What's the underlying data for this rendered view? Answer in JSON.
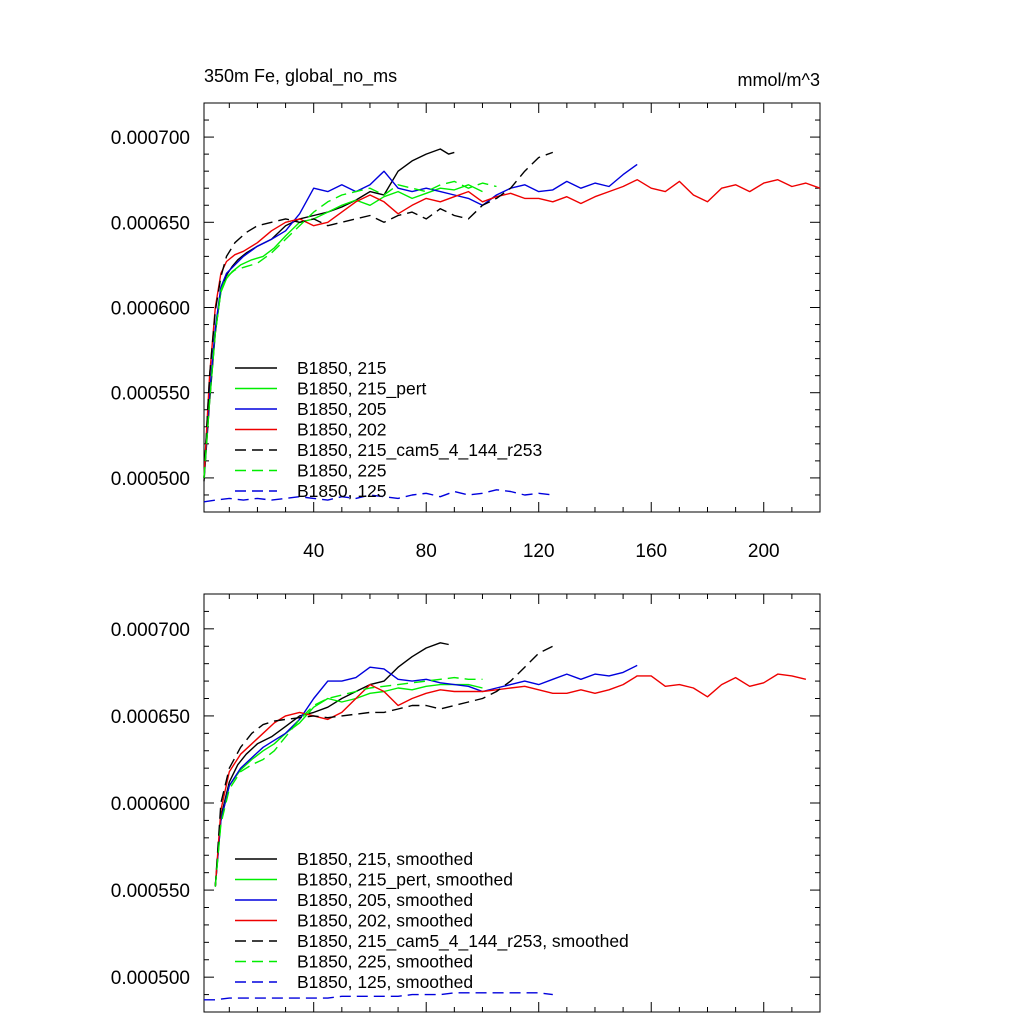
{
  "chart_data": [
    {
      "type": "line",
      "title": "350m Fe, global_no_ms",
      "units": "mmol/m^3",
      "xlim": [
        1,
        220
      ],
      "ylim": [
        0.00048,
        0.00072
      ],
      "xticks": [
        40,
        80,
        120,
        160,
        200
      ],
      "xtick_labels": [
        "40",
        "80",
        "120",
        "160",
        "200"
      ],
      "yticks": [
        0.0005,
        0.00055,
        0.0006,
        0.00065,
        0.0007
      ],
      "ytick_labels": [
        "0.000500",
        "0.000550",
        "0.000600",
        "0.000650",
        "0.000700"
      ],
      "legend_position": "lower-left",
      "series": [
        {
          "name": "B1850, 215",
          "color": "#000000",
          "dash": "solid",
          "x": [
            1,
            3,
            5,
            7,
            9,
            11,
            13,
            16,
            20,
            25,
            30,
            35,
            40,
            45,
            50,
            55,
            60,
            65,
            70,
            75,
            80,
            85,
            88,
            90
          ],
          "y": [
            0.000498,
            0.000545,
            0.000585,
            0.00061,
            0.000619,
            0.000624,
            0.000628,
            0.000632,
            0.000636,
            0.00064,
            0.000648,
            0.000652,
            0.000654,
            0.000656,
            0.000659,
            0.000663,
            0.000668,
            0.000666,
            0.00068,
            0.000686,
            0.00069,
            0.000693,
            0.00069,
            0.000691
          ]
        },
        {
          "name": "B1850, 215_pert",
          "color": "#00ee00",
          "dash": "solid",
          "x": [
            1,
            3,
            5,
            7,
            9,
            11,
            14,
            18,
            22,
            26,
            30,
            35,
            40,
            45,
            50,
            55,
            60,
            65,
            70,
            75,
            80,
            85,
            90,
            95,
            100
          ],
          "y": [
            0.0005,
            0.000548,
            0.000586,
            0.000609,
            0.000617,
            0.000621,
            0.000625,
            0.000628,
            0.00063,
            0.000635,
            0.000642,
            0.00065,
            0.000652,
            0.000656,
            0.00066,
            0.000663,
            0.00066,
            0.000665,
            0.000668,
            0.000664,
            0.000667,
            0.00067,
            0.000669,
            0.000672,
            0.000668
          ]
        },
        {
          "name": "B1850, 205",
          "color": "#0000dd",
          "dash": "solid",
          "x": [
            1,
            3,
            5,
            7,
            9,
            12,
            15,
            20,
            25,
            30,
            35,
            40,
            45,
            50,
            55,
            60,
            65,
            70,
            75,
            80,
            85,
            90,
            95,
            100,
            105,
            110,
            115,
            120,
            125,
            130,
            135,
            140,
            145,
            150,
            155
          ],
          "y": [
            0.0005,
            0.00055,
            0.000588,
            0.000612,
            0.00062,
            0.000625,
            0.00063,
            0.000636,
            0.00064,
            0.000645,
            0.000655,
            0.00067,
            0.000668,
            0.000672,
            0.000668,
            0.000672,
            0.00068,
            0.00067,
            0.000668,
            0.00067,
            0.000668,
            0.000666,
            0.000664,
            0.00066,
            0.000666,
            0.00067,
            0.000672,
            0.000668,
            0.000669,
            0.000674,
            0.00067,
            0.000673,
            0.000671,
            0.000678,
            0.000684
          ]
        },
        {
          "name": "B1850, 202",
          "color": "#ee0000",
          "dash": "solid",
          "x": [
            1,
            3,
            5,
            7,
            9,
            12,
            15,
            20,
            25,
            30,
            35,
            40,
            45,
            50,
            55,
            60,
            65,
            70,
            75,
            80,
            85,
            90,
            95,
            100,
            105,
            110,
            115,
            120,
            125,
            130,
            135,
            140,
            145,
            150,
            155,
            160,
            165,
            170,
            175,
            180,
            185,
            190,
            195,
            200,
            205,
            210,
            215,
            220
          ],
          "y": [
            0.0005,
            0.00056,
            0.0006,
            0.00062,
            0.000627,
            0.000631,
            0.000633,
            0.000638,
            0.000645,
            0.00065,
            0.000652,
            0.000648,
            0.00065,
            0.000656,
            0.000662,
            0.000666,
            0.000662,
            0.000655,
            0.00066,
            0.000664,
            0.000662,
            0.000665,
            0.000668,
            0.000662,
            0.000665,
            0.000667,
            0.000664,
            0.000664,
            0.000662,
            0.000665,
            0.000661,
            0.000665,
            0.000668,
            0.000671,
            0.000675,
            0.00067,
            0.000668,
            0.000674,
            0.000666,
            0.000662,
            0.00067,
            0.000672,
            0.000668,
            0.000673,
            0.000675,
            0.000671,
            0.000673,
            0.00067
          ]
        },
        {
          "name": "B1850, 215_cam5_4_144_r253",
          "color": "#000000",
          "dash": "dashed",
          "x": [
            1,
            3,
            5,
            7,
            9,
            12,
            16,
            20,
            25,
            30,
            35,
            40,
            45,
            50,
            55,
            60,
            65,
            70,
            75,
            80,
            85,
            90,
            95,
            100,
            105,
            110,
            115,
            120,
            125
          ],
          "y": [
            0.0005,
            0.00056,
            0.000598,
            0.000618,
            0.00063,
            0.000638,
            0.000644,
            0.000648,
            0.00065,
            0.000652,
            0.00065,
            0.000652,
            0.000648,
            0.00065,
            0.000652,
            0.000654,
            0.00065,
            0.000654,
            0.000656,
            0.000652,
            0.000658,
            0.000654,
            0.000652,
            0.00066,
            0.000664,
            0.00067,
            0.00068,
            0.000688,
            0.000691
          ]
        },
        {
          "name": "B1850, 225",
          "color": "#00ee00",
          "dash": "dashed",
          "x": [
            1,
            3,
            5,
            7,
            9,
            12,
            16,
            20,
            25,
            30,
            35,
            40,
            45,
            50,
            55,
            60,
            65,
            70,
            75,
            80,
            85,
            90,
            95,
            100,
            105
          ],
          "y": [
            0.0005,
            0.000545,
            0.000585,
            0.00061,
            0.000618,
            0.000622,
            0.000624,
            0.000626,
            0.000632,
            0.00064,
            0.000648,
            0.000656,
            0.000662,
            0.000666,
            0.000668,
            0.00067,
            0.000666,
            0.000672,
            0.00067,
            0.000668,
            0.000672,
            0.000674,
            0.00067,
            0.000673,
            0.000671
          ]
        },
        {
          "name": "B1850, 125",
          "color": "#0000dd",
          "dash": "dashed",
          "x": [
            1,
            5,
            10,
            15,
            20,
            25,
            30,
            35,
            40,
            45,
            50,
            55,
            60,
            65,
            70,
            75,
            80,
            85,
            90,
            95,
            100,
            105,
            110,
            115,
            120,
            125
          ],
          "y": [
            0.000486,
            0.000487,
            0.000488,
            0.000487,
            0.000488,
            0.000487,
            0.000488,
            0.000489,
            0.000488,
            0.000487,
            0.000489,
            0.000488,
            0.00049,
            0.000489,
            0.000488,
            0.00049,
            0.000491,
            0.000489,
            0.000492,
            0.00049,
            0.000491,
            0.000493,
            0.000492,
            0.00049,
            0.000491,
            0.00049
          ]
        }
      ]
    },
    {
      "type": "line",
      "xlim": [
        1,
        220
      ],
      "ylim": [
        0.00048,
        0.00072
      ],
      "xticks": [
        40,
        80,
        120,
        160,
        200
      ],
      "yticks": [
        0.0005,
        0.00055,
        0.0006,
        0.00065,
        0.0007
      ],
      "ytick_labels": [
        "0.000500",
        "0.000550",
        "0.000600",
        "0.000650",
        "0.000700"
      ],
      "legend_position": "lower-left",
      "series": [
        {
          "name": "B1850, 215, smoothed",
          "color": "#000000",
          "dash": "solid",
          "x": [
            5,
            7,
            10,
            13,
            16,
            20,
            25,
            30,
            35,
            40,
            45,
            50,
            55,
            60,
            65,
            70,
            75,
            80,
            85,
            88
          ],
          "y": [
            0.000552,
            0.000592,
            0.000612,
            0.000622,
            0.000628,
            0.000634,
            0.000638,
            0.000644,
            0.00065,
            0.000652,
            0.000655,
            0.00066,
            0.000664,
            0.000668,
            0.00067,
            0.000678,
            0.000684,
            0.000689,
            0.000692,
            0.000691
          ]
        },
        {
          "name": "B1850, 215_pert, smoothed",
          "color": "#00ee00",
          "dash": "solid",
          "x": [
            5,
            7,
            10,
            14,
            18,
            22,
            26,
            30,
            35,
            40,
            45,
            50,
            55,
            60,
            65,
            70,
            75,
            80,
            85,
            90,
            95,
            100
          ],
          "y": [
            0.000552,
            0.00059,
            0.00061,
            0.000619,
            0.000625,
            0.00063,
            0.000634,
            0.00064,
            0.000646,
            0.000655,
            0.00066,
            0.000658,
            0.00066,
            0.000663,
            0.000664,
            0.000666,
            0.000665,
            0.000667,
            0.000668,
            0.000668,
            0.000668,
            0.000666
          ]
        },
        {
          "name": "B1850, 205, smoothed",
          "color": "#0000dd",
          "dash": "solid",
          "x": [
            5,
            7,
            10,
            14,
            18,
            22,
            26,
            30,
            35,
            40,
            45,
            50,
            55,
            60,
            65,
            70,
            75,
            80,
            85,
            90,
            95,
            100,
            105,
            110,
            115,
            120,
            125,
            130,
            135,
            140,
            145,
            150,
            155
          ],
          "y": [
            0.000552,
            0.00059,
            0.00061,
            0.00062,
            0.000626,
            0.000632,
            0.000636,
            0.00064,
            0.000648,
            0.00066,
            0.00067,
            0.00067,
            0.000672,
            0.000678,
            0.000677,
            0.000671,
            0.00067,
            0.000671,
            0.000669,
            0.000668,
            0.000667,
            0.000664,
            0.000666,
            0.000668,
            0.00067,
            0.000668,
            0.000671,
            0.000674,
            0.000671,
            0.000674,
            0.000673,
            0.000675,
            0.000679
          ]
        },
        {
          "name": "B1850, 202, smoothed",
          "color": "#ee0000",
          "dash": "solid",
          "x": [
            5,
            7,
            10,
            14,
            18,
            22,
            26,
            30,
            35,
            40,
            45,
            50,
            55,
            60,
            65,
            70,
            75,
            80,
            85,
            90,
            95,
            100,
            105,
            110,
            115,
            120,
            125,
            130,
            135,
            140,
            145,
            150,
            155,
            160,
            165,
            170,
            175,
            180,
            185,
            190,
            195,
            200,
            205,
            210,
            215
          ],
          "y": [
            0.000552,
            0.000596,
            0.000618,
            0.000628,
            0.000634,
            0.00064,
            0.000646,
            0.00065,
            0.000652,
            0.00065,
            0.000648,
            0.000652,
            0.00066,
            0.000668,
            0.000664,
            0.000656,
            0.00066,
            0.000663,
            0.000665,
            0.000664,
            0.000664,
            0.000664,
            0.000665,
            0.000666,
            0.000667,
            0.000665,
            0.000663,
            0.000663,
            0.000665,
            0.000663,
            0.000665,
            0.000668,
            0.000673,
            0.000673,
            0.000667,
            0.000668,
            0.000666,
            0.000661,
            0.000668,
            0.000672,
            0.000667,
            0.000669,
            0.000674,
            0.000673,
            0.000671
          ]
        },
        {
          "name": "B1850, 215_cam5_4_144_r253, smoothed",
          "color": "#000000",
          "dash": "dashed",
          "x": [
            5,
            7,
            10,
            14,
            18,
            22,
            26,
            30,
            35,
            40,
            45,
            50,
            55,
            60,
            65,
            70,
            75,
            80,
            85,
            90,
            95,
            100,
            105,
            110,
            115,
            120,
            125
          ],
          "y": [
            0.000552,
            0.0006,
            0.00062,
            0.000632,
            0.00064,
            0.000645,
            0.000647,
            0.000648,
            0.000649,
            0.00065,
            0.000649,
            0.00065,
            0.000651,
            0.000652,
            0.000652,
            0.000654,
            0.000656,
            0.000656,
            0.000654,
            0.000656,
            0.000658,
            0.00066,
            0.000664,
            0.00067,
            0.000678,
            0.000686,
            0.00069
          ]
        },
        {
          "name": "B1850, 225, smoothed",
          "color": "#00ee00",
          "dash": "dashed",
          "x": [
            5,
            7,
            10,
            14,
            18,
            22,
            26,
            30,
            35,
            40,
            45,
            50,
            55,
            60,
            65,
            70,
            75,
            80,
            85,
            90,
            95,
            100
          ],
          "y": [
            0.000552,
            0.000588,
            0.000608,
            0.000618,
            0.000622,
            0.000625,
            0.00063,
            0.000638,
            0.000648,
            0.000656,
            0.00066,
            0.000662,
            0.000664,
            0.000666,
            0.000667,
            0.000668,
            0.000669,
            0.00067,
            0.000671,
            0.000672,
            0.000671,
            0.000671
          ]
        },
        {
          "name": "B1850, 125, smoothed",
          "color": "#0000dd",
          "dash": "dashed",
          "x": [
            1,
            5,
            10,
            15,
            20,
            25,
            30,
            35,
            40,
            45,
            50,
            55,
            60,
            65,
            70,
            75,
            80,
            85,
            90,
            95,
            100,
            105,
            110,
            115,
            120,
            125
          ],
          "y": [
            0.000487,
            0.000487,
            0.000488,
            0.000488,
            0.000488,
            0.000488,
            0.000488,
            0.000488,
            0.000488,
            0.000488,
            0.000489,
            0.000489,
            0.000489,
            0.000489,
            0.000489,
            0.00049,
            0.00049,
            0.00049,
            0.000491,
            0.000491,
            0.000491,
            0.000491,
            0.000491,
            0.000491,
            0.000491,
            0.00049
          ]
        }
      ]
    }
  ]
}
